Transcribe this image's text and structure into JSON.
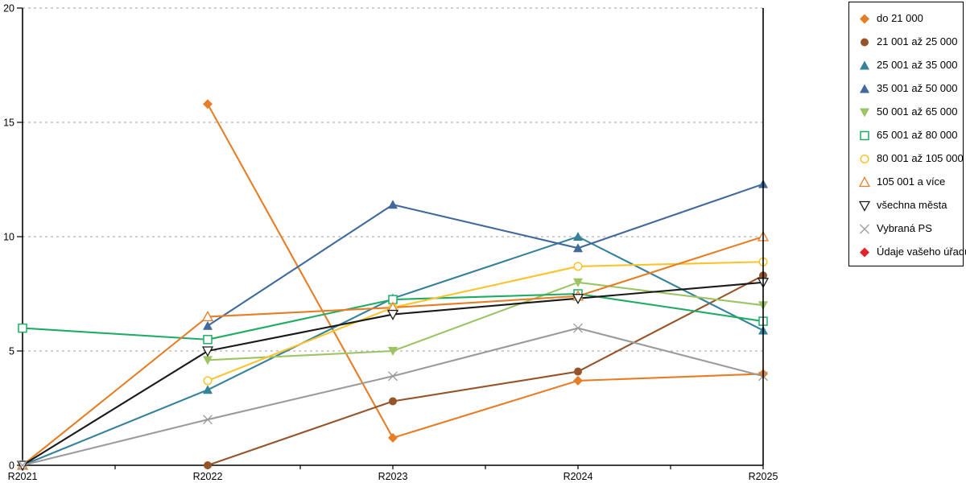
{
  "chart_data": {
    "type": "line",
    "title": "",
    "xlabel": "",
    "ylabel": "",
    "x_categories": [
      "R2021",
      "R2022",
      "R2023",
      "R2024",
      "R2025"
    ],
    "ylim": [
      0,
      20
    ],
    "yticks": [
      0,
      5,
      10,
      15,
      20
    ],
    "grid": "horizontal-dashed",
    "legend_position": "right-outside",
    "axis_color": "#000000",
    "gridline_color": "#b3b3b3",
    "series": [
      {
        "name": "do 21 000",
        "color": "#E57E26",
        "marker": "diamond-filled",
        "values": [
          null,
          15.8,
          1.2,
          3.7,
          4.0
        ]
      },
      {
        "name": "21 001 až 25 000",
        "color": "#96542A",
        "marker": "circle-filled",
        "values": [
          null,
          0,
          2.8,
          4.1,
          8.3
        ]
      },
      {
        "name": "25 001 až 35 000",
        "color": "#35829B",
        "marker": "triangle-up-filled",
        "values": [
          0,
          3.3,
          7.3,
          10.0,
          5.9
        ]
      },
      {
        "name": "35 001 až 50 000",
        "color": "#41699B",
        "marker": "triangle-up-filled",
        "values": [
          null,
          6.1,
          11.4,
          9.5,
          12.3
        ]
      },
      {
        "name": "50 001 až 65 000",
        "color": "#9DC464",
        "marker": "triangle-down-filled",
        "values": [
          null,
          4.6,
          5.0,
          8.0,
          7.0
        ]
      },
      {
        "name": "65 001 až 80 000",
        "color": "#21AC66",
        "marker": "square-open",
        "values": [
          6.0,
          5.5,
          7.25,
          7.5,
          6.3
        ]
      },
      {
        "name": "80 001 až 105 000",
        "color": "#F9C42E",
        "marker": "circle-open",
        "values": [
          null,
          3.7,
          6.9,
          8.7,
          8.9
        ]
      },
      {
        "name": "105 001 a více",
        "color": "#E57E26",
        "marker": "triangle-up-open",
        "values": [
          0,
          6.5,
          6.9,
          7.4,
          10.0
        ]
      },
      {
        "name": "všechna města",
        "color": "#1A1A1A",
        "marker": "triangle-down-open",
        "values": [
          0,
          5.0,
          6.6,
          7.3,
          8.0
        ]
      },
      {
        "name": "Vybraná PS",
        "color": "#9B9B9B",
        "marker": "x",
        "values": [
          0,
          2.0,
          3.9,
          6.0,
          3.9
        ]
      },
      {
        "name": "Údaje vašeho úřadu",
        "color": "#E0242A",
        "marker": "diamond-filled",
        "values": [
          null,
          null,
          null,
          null,
          null
        ]
      }
    ]
  }
}
